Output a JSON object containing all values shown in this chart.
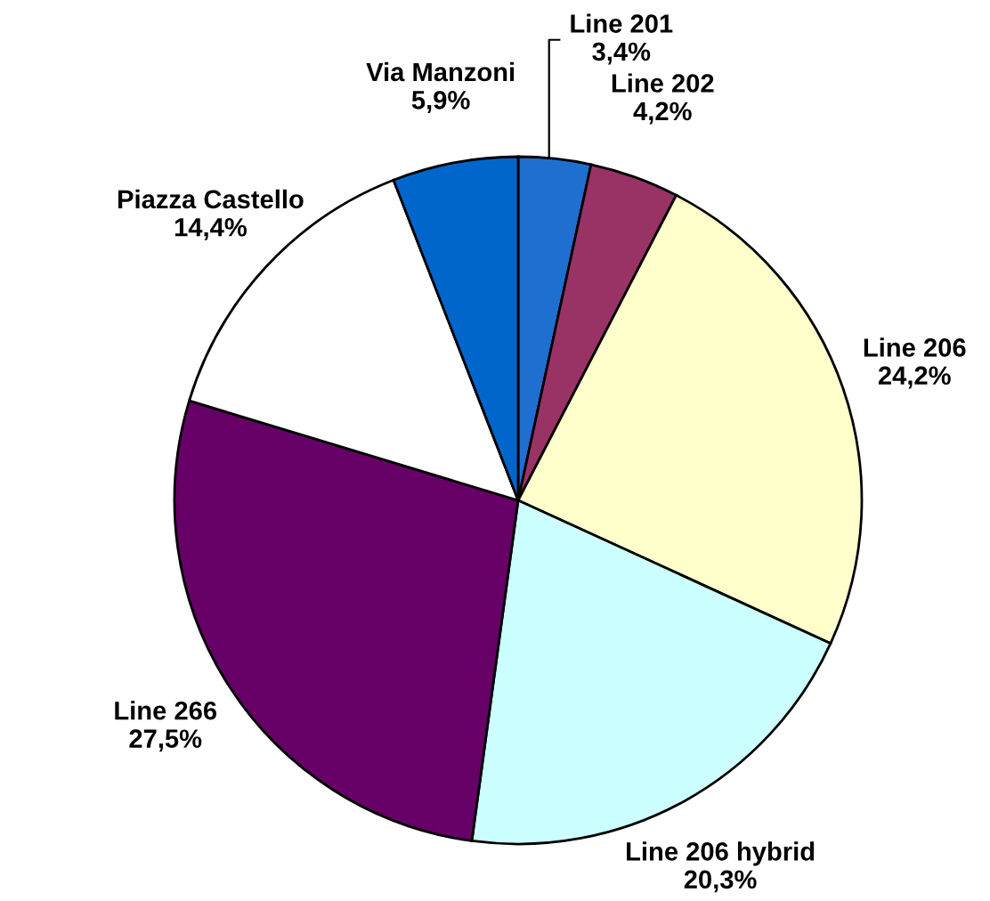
{
  "chart_data": {
    "type": "pie",
    "categories": [
      "Line 201",
      "Line 202",
      "Line 206",
      "Line 206 hybrid",
      "Line 266",
      "Piazza Castello",
      "Via Manzoni"
    ],
    "values": [
      3.4,
      4.2,
      24.2,
      20.3,
      27.5,
      14.4,
      5.9
    ],
    "value_labels": [
      "3,4%",
      "4,2%",
      "24,2%",
      "20,3%",
      "27,5%",
      "14,4%",
      "5,9%"
    ],
    "colors": [
      "#1f6fd1",
      "#993366",
      "#ffffcc",
      "#ccffff",
      "#660066",
      "#ffffff",
      "#0066cc"
    ]
  }
}
